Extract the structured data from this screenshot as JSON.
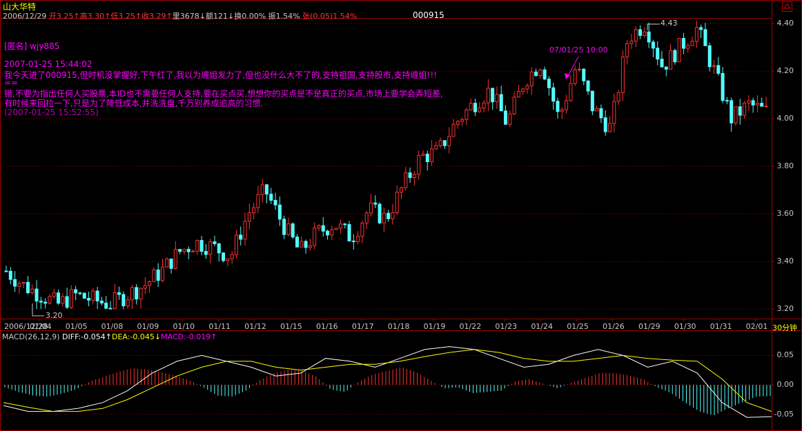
{
  "header": {
    "stock_name": "山大华特",
    "date": "2006/12/29",
    "open_label": "开",
    "open": "3.25",
    "high_label": "高",
    "high": "3.30",
    "low_label": "低",
    "low": "3.25",
    "close_label": "收",
    "close": "3.29",
    "volume_label": "里",
    "volume": "3678",
    "amount_label": "额",
    "amount": "121",
    "turnover_label": "换",
    "turnover": "0.00%",
    "amplitude_label": "振",
    "amplitude": "1.54%",
    "change_label": "张",
    "change": "(0.05)",
    "change_pct": "1.54%",
    "stock_code": "000915"
  },
  "comments": {
    "author": "[匿名] wjy885",
    "time1": "2007-01-25 15:44:02",
    "text1": "我今天进了000915,但时机没掌握好,下午红了,我以为缠姐发力了,但也没什么大不了的,支持祖国,支持股市,支持缠姐!!!",
    "sep": "==",
    "text2": "错,不要为指出任何人买股票,本ID也不需要任何人支持,要在买点买,想想你的买点是不是真正的买点,市场上要学会弄短差,",
    "text3": "有时候来回拉一下,只是为了降低成本,并洗洗盘,千万别养成追高的习惯.",
    "time2": "(2007-01-25 15:52:55)"
  },
  "annotations": {
    "marker_label": "07/01/25 10:00",
    "high_label": "4.43",
    "low_label": "3.20"
  },
  "period_label": "30分钟",
  "macd": {
    "label": "MACD(26,12,9)",
    "diff_label": "DIFF:",
    "diff": "-0.054",
    "dea_label": "DEA:",
    "dea": "-0.045",
    "macd_label": "MACD:",
    "macd": "-0.019"
  },
  "colors": {
    "up": "#ff3232",
    "down": "#54ffff",
    "grid": "#a00000",
    "diff": "#ffffff",
    "dea": "#ffff00",
    "macd_label": "#ff00ff"
  },
  "chart_data": [
    {
      "type": "candlestick",
      "title": "000915",
      "x_ticks": [
        "2006/12/28",
        "01/04",
        "01/05",
        "01/08",
        "01/09",
        "01/10",
        "01/11",
        "01/12",
        "01/15",
        "01/16",
        "01/17",
        "01/18",
        "01/19",
        "01/22",
        "01/23",
        "01/24",
        "01/25",
        "01/26",
        "01/29",
        "01/30",
        "01/31",
        "02/01"
      ],
      "y_ticks": [
        "3.20",
        "3.40",
        "3.60",
        "3.80",
        "4.00",
        "4.20",
        "4.40"
      ],
      "ylim": [
        3.16,
        4.47
      ],
      "high": 4.43,
      "low": 3.2,
      "close_path": [
        3.36,
        3.3,
        3.26,
        3.22,
        3.26,
        3.24,
        3.22,
        3.26,
        3.3,
        3.36,
        3.44,
        3.48,
        3.46,
        3.42,
        3.6,
        3.7,
        3.56,
        3.44,
        3.52,
        3.56,
        3.5,
        3.62,
        3.58,
        3.72,
        3.84,
        3.86,
        3.98,
        4.06,
        4.12,
        3.98,
        4.16,
        4.24,
        4.0,
        4.22,
        4.04,
        3.96,
        4.34,
        4.4,
        4.22,
        4.3,
        4.38,
        4.2,
        4.0,
        4.06,
        4.03
      ]
    },
    {
      "type": "line",
      "title": "MACD(26,12,9)",
      "y_ticks": [
        "0.05",
        "0.00",
        "-0.05"
      ],
      "ylim": [
        -0.07,
        0.075
      ],
      "series": [
        {
          "name": "DIFF",
          "values": [
            -0.035,
            -0.045,
            -0.045,
            -0.04,
            -0.03,
            -0.01,
            0.02,
            0.04,
            0.05,
            0.04,
            0.03,
            0.015,
            0.02,
            0.045,
            0.04,
            0.03,
            0.045,
            0.06,
            0.065,
            0.06,
            0.045,
            0.03,
            0.035,
            0.05,
            0.06,
            0.05,
            0.03,
            0.04,
            0.02,
            -0.03,
            -0.055,
            -0.054
          ]
        },
        {
          "name": "DEA",
          "values": [
            -0.03,
            -0.038,
            -0.045,
            -0.045,
            -0.04,
            -0.025,
            -0.005,
            0.015,
            0.03,
            0.04,
            0.04,
            0.03,
            0.025,
            0.03,
            0.035,
            0.035,
            0.04,
            0.048,
            0.055,
            0.06,
            0.055,
            0.045,
            0.04,
            0.04,
            0.045,
            0.05,
            0.045,
            0.042,
            0.04,
            0.01,
            -0.03,
            -0.045
          ]
        }
      ],
      "macd_bars": [
        -0.004,
        -0.012,
        -0.018,
        -0.02,
        -0.015,
        -0.008,
        0.006,
        0.014,
        0.022,
        0.028,
        0.026,
        0.022,
        0.016,
        0.008,
        -0.004,
        -0.018,
        -0.02,
        -0.01,
        0.008,
        0.02,
        0.026,
        0.024,
        0.014,
        -0.008,
        -0.012,
        0.006,
        0.018,
        0.024,
        0.03,
        0.022,
        0.008,
        -0.006,
        -0.004,
        -0.014,
        -0.012,
        -0.01,
        0.006,
        0.01,
        0.002,
        -0.006,
        0.004,
        0.012,
        0.02,
        0.02,
        0.016,
        0.01,
        -0.004,
        -0.014,
        -0.03,
        -0.045,
        -0.052,
        -0.04,
        -0.03,
        -0.02,
        -0.019
      ]
    }
  ]
}
